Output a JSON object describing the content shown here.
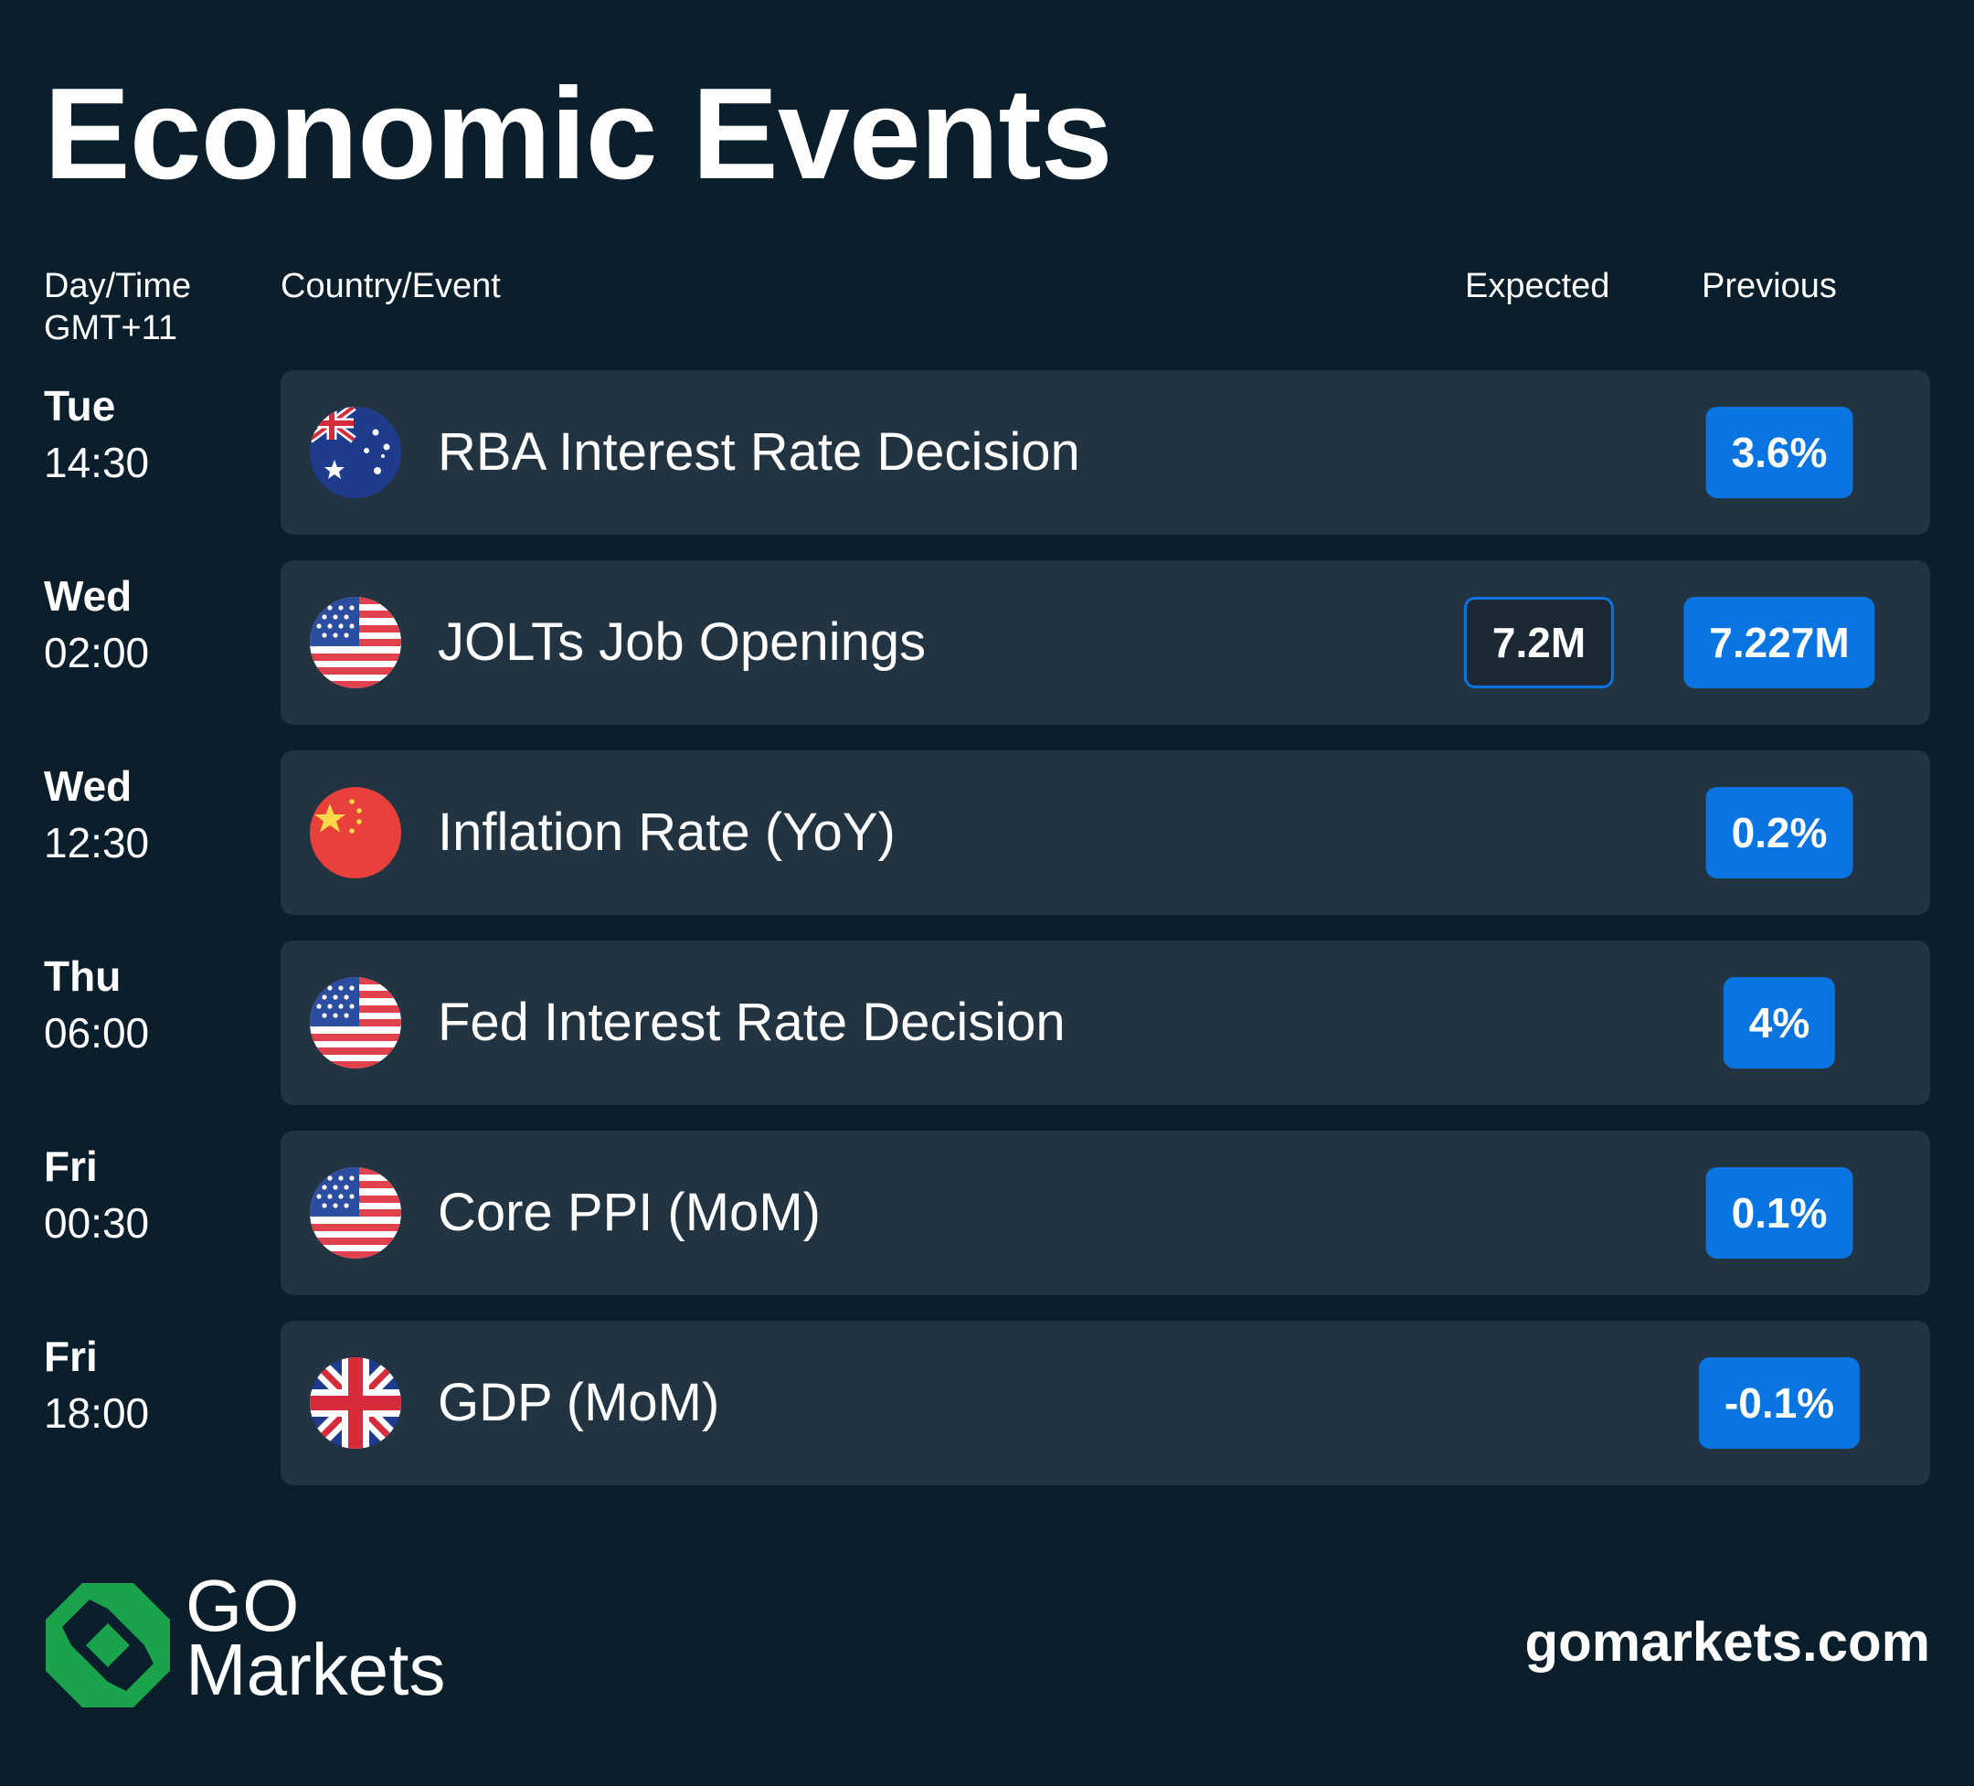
{
  "title": "Economic Events",
  "headers": {
    "daytime_line1": "Day/Time",
    "daytime_line2": "GMT+11",
    "event": "Country/Event",
    "expected": "Expected",
    "previous": "Previous"
  },
  "events": [
    {
      "day": "Tue",
      "time": "14:30",
      "country_flag": "australia-flag-icon",
      "event": "RBA Interest Rate Decision",
      "expected": "",
      "previous": "3.6%"
    },
    {
      "day": "Wed",
      "time": "02:00",
      "country_flag": "usa-flag-icon",
      "event": "JOLTs Job Openings",
      "expected": "7.2M",
      "previous": "7.227M"
    },
    {
      "day": "Wed",
      "time": "12:30",
      "country_flag": "china-flag-icon",
      "event": "Inflation Rate (YoY)",
      "expected": "",
      "previous": "0.2%"
    },
    {
      "day": "Thu",
      "time": "06:00",
      "country_flag": "usa-flag-icon",
      "event": "Fed Interest Rate Decision",
      "expected": "",
      "previous": "4%"
    },
    {
      "day": "Fri",
      "time": "00:30",
      "country_flag": "usa-flag-icon",
      "event": "Core PPI (MoM)",
      "expected": "",
      "previous": "0.1%"
    },
    {
      "day": "Fri",
      "time": "18:00",
      "country_flag": "uk-flag-icon",
      "event": "GDP (MoM)",
      "expected": "",
      "previous": "-0.1%"
    }
  ],
  "footer": {
    "brand_line1": "GO",
    "brand_line2": "Markets",
    "url": "gomarkets.com"
  },
  "colors": {
    "background": "#0b1e2c",
    "card": "#223341",
    "accent_blue": "#0a74e0",
    "logo_green": "#1aa34a"
  }
}
